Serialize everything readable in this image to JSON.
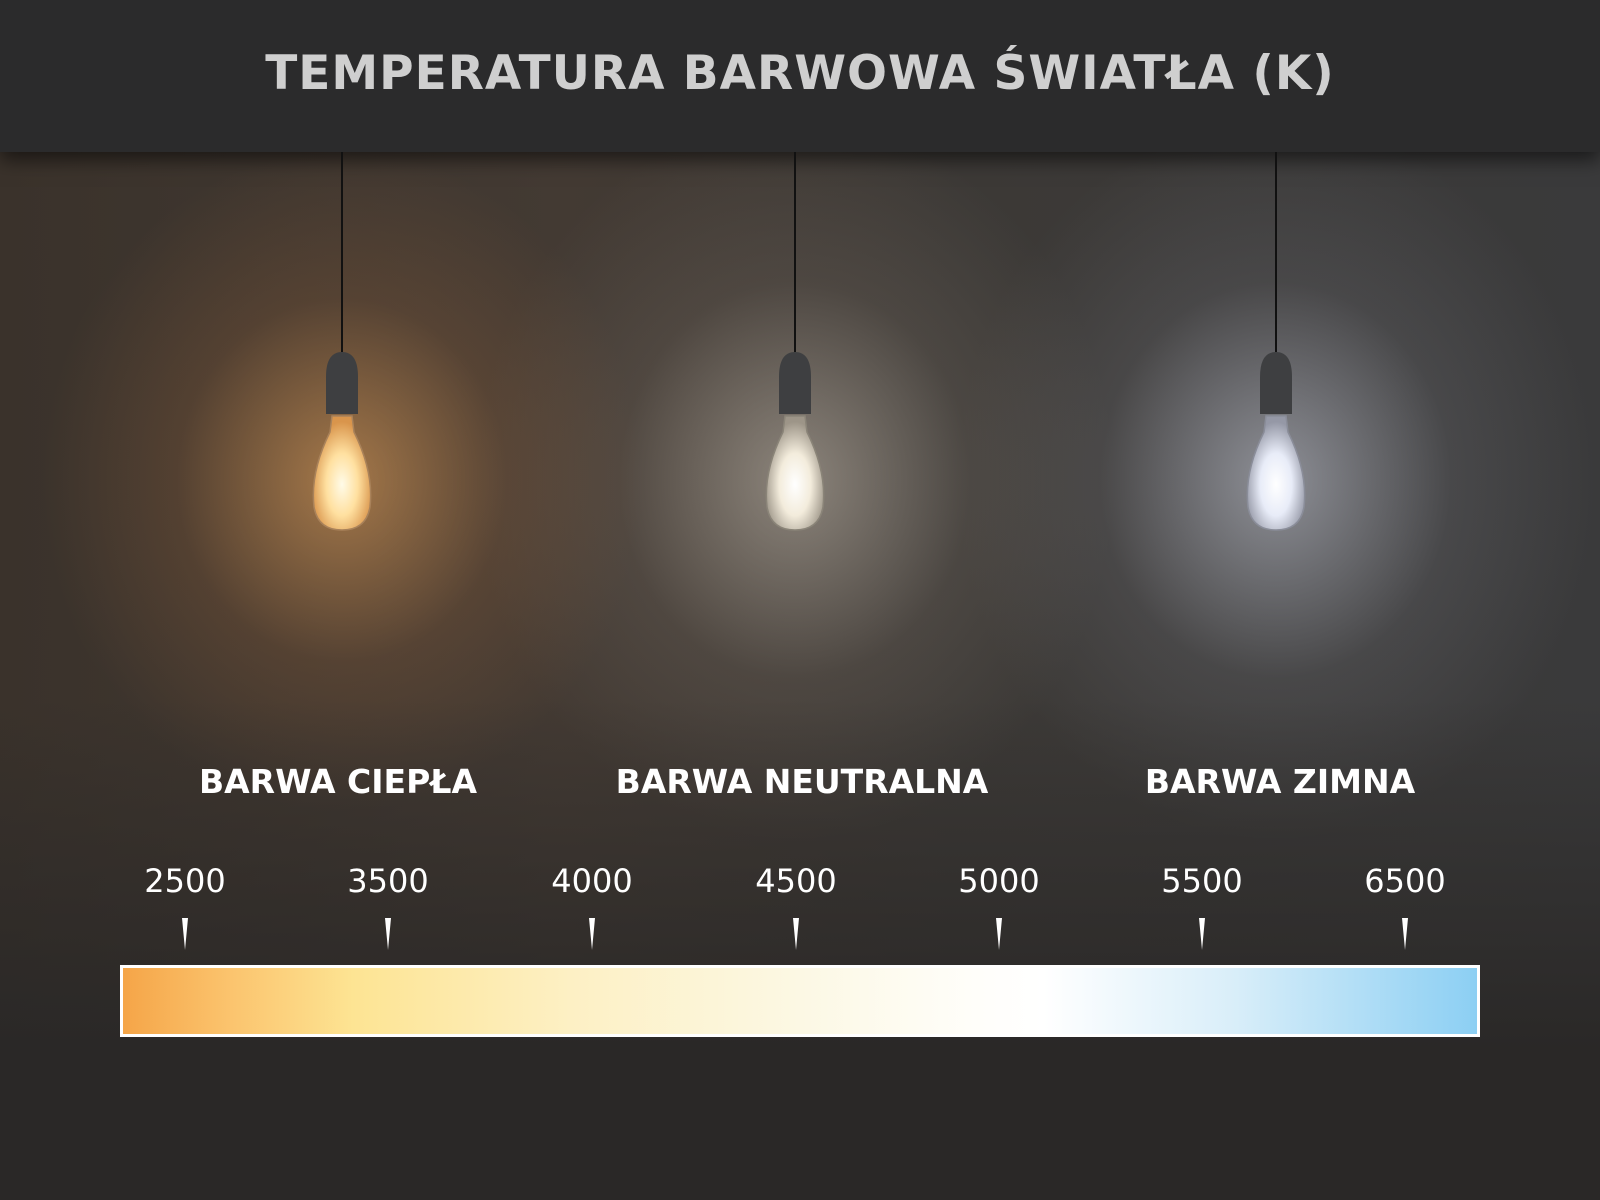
{
  "title": "TEMPERATURA BARWOWA ŚWIATŁA (K)",
  "categories": [
    {
      "label": "BARWA CIEPŁA",
      "glow_color": "#f7b56a"
    },
    {
      "label": "BARWA NEUTRALNA",
      "glow_color": "#ece3d4"
    },
    {
      "label": "BARWA ZIMNA",
      "glow_color": "#e2e7f5"
    }
  ],
  "scale": {
    "ticks": [
      "2500",
      "3500",
      "4000",
      "4500",
      "5000",
      "5500",
      "6500"
    ],
    "gradient_colors": [
      "#f5a548",
      "#fde493",
      "#fcf8e4",
      "#ffffff",
      "#8ccff3"
    ]
  }
}
